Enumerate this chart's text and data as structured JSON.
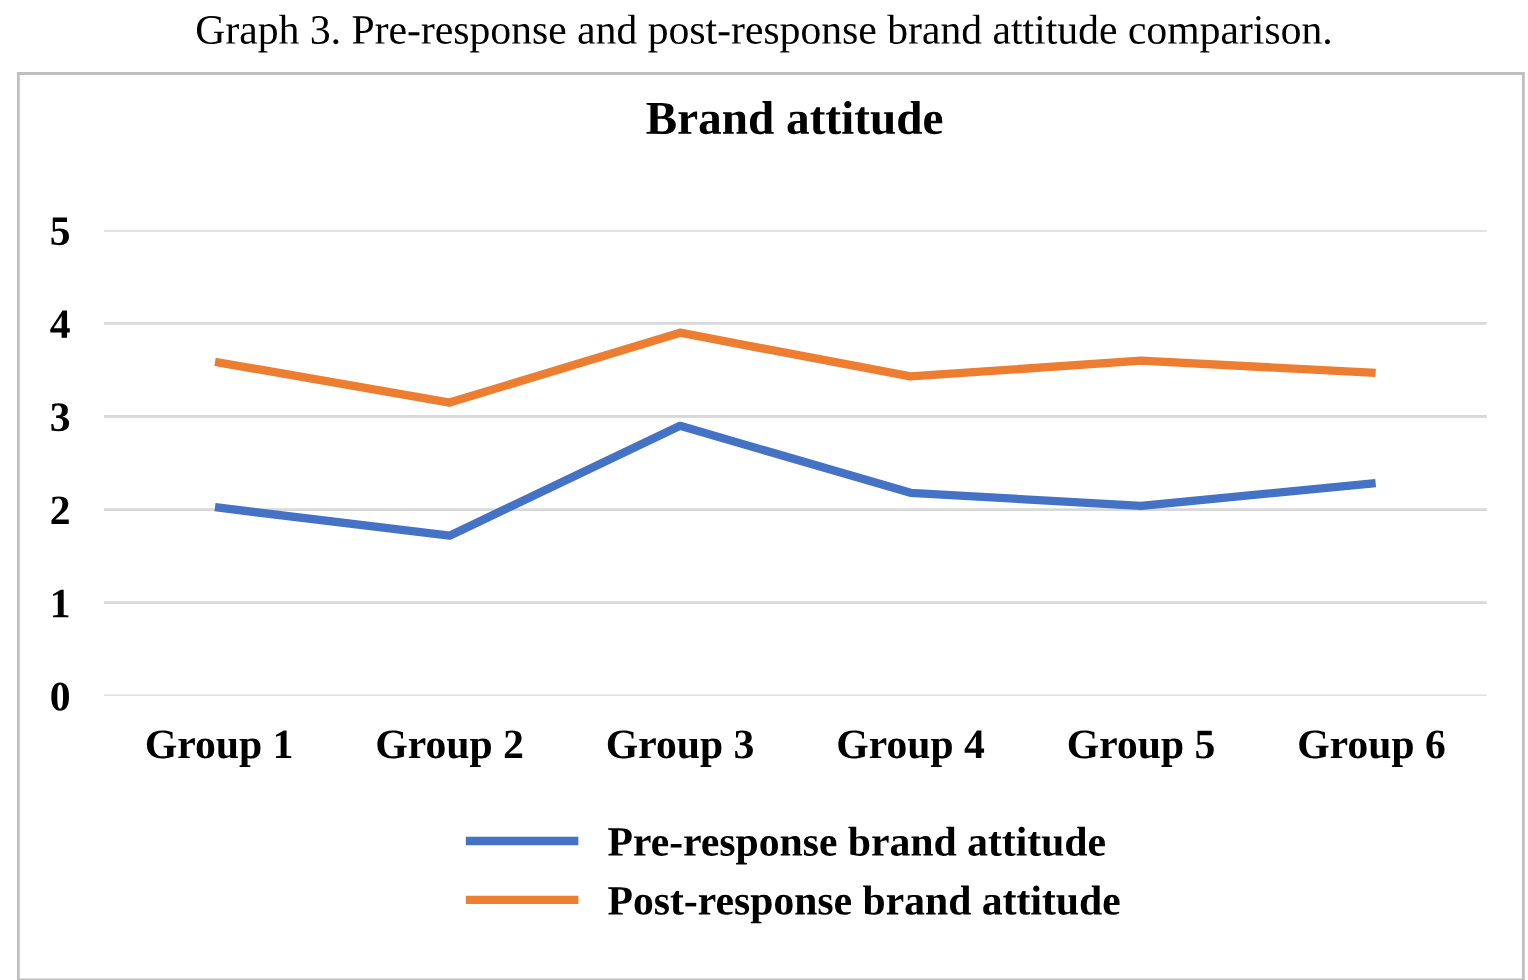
{
  "chart_data": {
    "type": "line",
    "title": "Brand attitude",
    "annotations": [
      "Graph 3. Pre-response and post-response brand attitude comparison."
    ],
    "categories": [
      "Group 1",
      "Group 2",
      "Group 3",
      "Group 4",
      "Group 5",
      "Group 6"
    ],
    "series": [
      {
        "name": "Pre-response brand attitude",
        "color": "#4472c4",
        "values": [
          2.02,
          1.72,
          2.9,
          2.18,
          2.04,
          2.28
        ]
      },
      {
        "name": "Post-response brand attitude",
        "color": "#ed7d31",
        "values": [
          3.58,
          3.15,
          3.9,
          3.43,
          3.6,
          3.47
        ]
      }
    ],
    "ylim": [
      0,
      5
    ],
    "yticks": [
      0,
      1,
      2,
      3,
      4,
      5
    ],
    "grid": "y",
    "legend": "bottom",
    "marker": "none",
    "line_style": "solid"
  }
}
